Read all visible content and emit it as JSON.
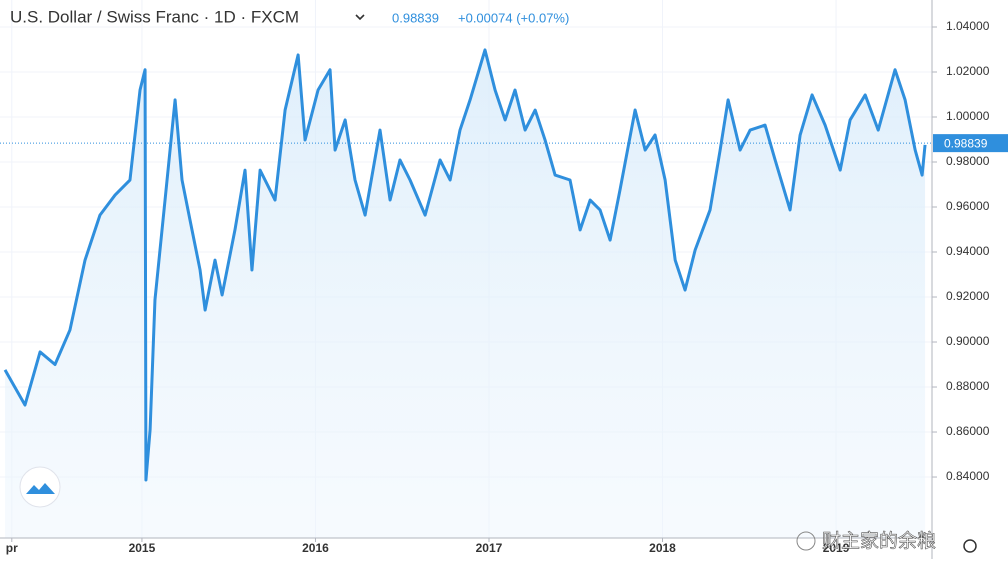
{
  "chart_data": {
    "type": "line",
    "title": "U.S. Dollar / Swiss Franc · 1D · FXCM",
    "last_value": 0.98839,
    "change": "+0.00074 (+0.07%)",
    "watermark": "财主家的余粮",
    "color": "#2f8fdd",
    "xlim": [
      2014.182,
      2019.553
    ],
    "ylim": [
      0.8129,
      1.052
    ],
    "xticks": [
      {
        "value": 2014.25,
        "label": "pr"
      },
      2015,
      2016,
      2017,
      2018,
      2019
    ],
    "yticks": [
      {
        "value": 0.84,
        "label": "0.84000"
      },
      {
        "value": 0.86,
        "label": "0.86000"
      },
      {
        "value": 0.88,
        "label": "0.88000"
      },
      {
        "value": 0.9,
        "label": "0.90000"
      },
      {
        "value": 0.92,
        "label": "0.92000"
      },
      {
        "value": 0.94,
        "label": "0.94000"
      },
      {
        "value": 0.96,
        "label": "0.96000"
      },
      {
        "value": 0.98,
        "label": "0.98000"
      },
      {
        "value": 1.0,
        "label": "1.00000"
      },
      {
        "value": 1.02,
        "label": "1.02000"
      },
      {
        "value": 1.04,
        "label": "1.04000"
      }
    ],
    "grid": true,
    "x": [
      2014.211,
      2014.326,
      2014.413,
      2014.499,
      2014.585,
      2014.672,
      2014.758,
      2014.845,
      2014.931,
      2014.989,
      2015.018,
      2015.023,
      2015.047,
      2015.075,
      2015.133,
      2015.191,
      2015.231,
      2015.277,
      2015.335,
      2015.364,
      2015.421,
      2015.462,
      2015.536,
      2015.594,
      2015.634,
      2015.681,
      2015.767,
      2015.825,
      2015.9,
      2015.94,
      2016.015,
      2016.084,
      2016.113,
      2016.171,
      2016.228,
      2016.286,
      2016.372,
      2016.43,
      2016.487,
      2016.545,
      2016.632,
      2016.718,
      2016.776,
      2016.833,
      2016.891,
      2016.977,
      2017.035,
      2017.093,
      2017.15,
      2017.208,
      2017.266,
      2017.323,
      2017.381,
      2017.467,
      2017.525,
      2017.583,
      2017.64,
      2017.698,
      2017.755,
      2017.842,
      2017.9,
      2017.957,
      2018.015,
      2018.073,
      2018.13,
      2018.188,
      2018.274,
      2018.332,
      2018.378,
      2018.447,
      2018.505,
      2018.591,
      2018.649,
      2018.735,
      2018.793,
      2018.862,
      2018.937,
      2019.024,
      2019.081,
      2019.168,
      2019.243,
      2019.34,
      2019.398,
      2019.456,
      2019.496,
      2019.513
    ],
    "series": [
      {
        "name": "USD/CHF",
        "color": "#2f8fdd",
        "values": [
          0.8876,
          0.872,
          0.8956,
          0.89,
          0.9053,
          0.9364,
          0.9564,
          0.9653,
          0.972,
          1.012,
          1.021,
          0.8387,
          0.861,
          0.9187,
          0.963,
          1.0076,
          0.972,
          0.9542,
          0.932,
          0.9142,
          0.9364,
          0.9209,
          0.9498,
          0.9764,
          0.932,
          0.9764,
          0.9631,
          1.0031,
          1.0276,
          0.9898,
          1.012,
          1.021,
          0.9853,
          0.9987,
          0.972,
          0.9564,
          0.9942,
          0.9631,
          0.9809,
          0.972,
          0.9564,
          0.9809,
          0.972,
          0.9942,
          1.0076,
          1.0298,
          1.012,
          0.9987,
          1.012,
          0.9942,
          1.0031,
          0.9898,
          0.9742,
          0.972,
          0.9498,
          0.9631,
          0.9587,
          0.9453,
          0.9676,
          1.0031,
          0.9853,
          0.992,
          0.972,
          0.9364,
          0.9231,
          0.9409,
          0.9587,
          0.9853,
          1.0076,
          0.9853,
          0.9942,
          0.9964,
          0.9809,
          0.9587,
          0.992,
          1.0098,
          0.9964,
          0.9764,
          0.9987,
          1.0098,
          0.9942,
          1.021,
          1.0076,
          0.9853,
          0.9742,
          0.9876
        ]
      }
    ]
  }
}
